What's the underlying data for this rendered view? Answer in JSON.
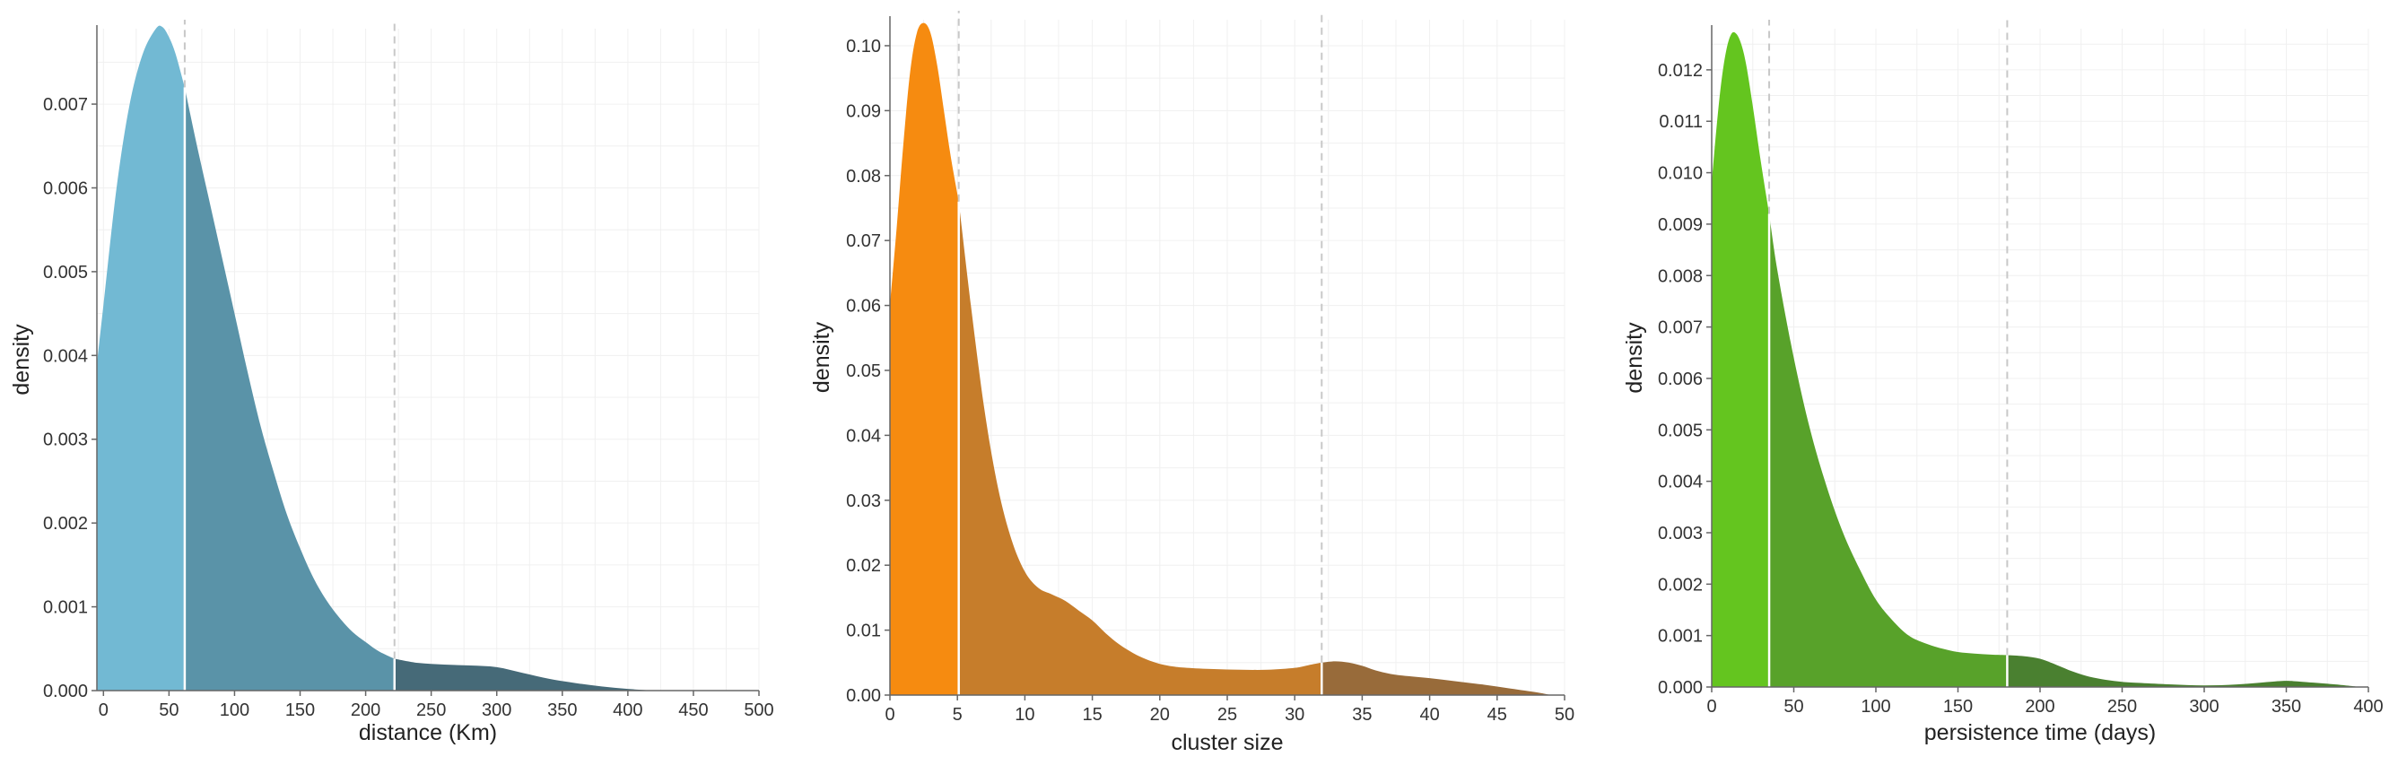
{
  "chart_data": [
    {
      "type": "area",
      "title": "",
      "xlabel": "distance (Km)",
      "ylabel": "density",
      "xlim": [
        -5,
        500
      ],
      "ylim": [
        0,
        0.0079
      ],
      "x_ticks": [
        0,
        50,
        100,
        150,
        200,
        250,
        300,
        350,
        400,
        450,
        500
      ],
      "y_ticks": [
        0.0,
        0.001,
        0.002,
        0.003,
        0.004,
        0.005,
        0.006,
        0.007
      ],
      "y_tick_decimals": 3,
      "grid": true,
      "colors": [
        "#72b9d3",
        "#5a93a8",
        "#466a78"
      ],
      "cutoffs": [
        62,
        222
      ],
      "x": [
        -5,
        0,
        10,
        20,
        30,
        40,
        45,
        50,
        55,
        62,
        70,
        80,
        90,
        100,
        110,
        120,
        130,
        140,
        150,
        160,
        170,
        180,
        190,
        200,
        210,
        222,
        240,
        260,
        280,
        300,
        320,
        340,
        360,
        380,
        400,
        420
      ],
      "y": [
        0.0039,
        0.0046,
        0.006,
        0.007,
        0.0076,
        0.0079,
        0.00792,
        0.0078,
        0.0076,
        0.0072,
        0.0066,
        0.0059,
        0.0052,
        0.0045,
        0.0038,
        0.00315,
        0.0026,
        0.0021,
        0.0017,
        0.00135,
        0.00108,
        0.00087,
        0.0007,
        0.00058,
        0.00047,
        0.00038,
        0.00033,
        0.00031,
        0.0003,
        0.00028,
        0.00021,
        0.00014,
        9e-05,
        5e-05,
        2e-05,
        0.0
      ]
    },
    {
      "type": "area",
      "title": "",
      "xlabel": "cluster size",
      "ylabel": "density",
      "xlim": [
        0,
        50
      ],
      "ylim": [
        0,
        0.104
      ],
      "x_ticks": [
        0,
        5,
        10,
        15,
        20,
        25,
        30,
        35,
        40,
        45,
        50
      ],
      "y_ticks": [
        0.0,
        0.01,
        0.02,
        0.03,
        0.04,
        0.05,
        0.06,
        0.07,
        0.08,
        0.09,
        0.1
      ],
      "y_tick_decimals": 2,
      "grid": true,
      "colors": [
        "#f68b10",
        "#c67d2b",
        "#986b3a"
      ],
      "cutoffs": [
        5.1,
        32
      ],
      "x": [
        0,
        0.5,
        1,
        1.5,
        2,
        2.5,
        3,
        3.5,
        4,
        4.5,
        5.1,
        6,
        7,
        8,
        9,
        10,
        11,
        12,
        13,
        14,
        15,
        16,
        17,
        18,
        19,
        20,
        21,
        22,
        24,
        26,
        28,
        30,
        31,
        32,
        33,
        34,
        35,
        36,
        37,
        38,
        40,
        42,
        44,
        46,
        48,
        49
      ],
      "y": [
        0.06,
        0.072,
        0.085,
        0.096,
        0.102,
        0.1035,
        0.102,
        0.097,
        0.09,
        0.083,
        0.076,
        0.06,
        0.044,
        0.032,
        0.024,
        0.019,
        0.0165,
        0.0155,
        0.0145,
        0.013,
        0.0115,
        0.0095,
        0.0078,
        0.0065,
        0.0055,
        0.0048,
        0.0044,
        0.0042,
        0.004,
        0.0039,
        0.0039,
        0.0042,
        0.0046,
        0.005,
        0.0052,
        0.005,
        0.0045,
        0.0038,
        0.0033,
        0.003,
        0.0026,
        0.0021,
        0.0016,
        0.001,
        0.0004,
        0.0
      ]
    },
    {
      "type": "area",
      "title": "",
      "xlabel": "persistence time (days)",
      "ylabel": "density",
      "xlim": [
        0,
        400
      ],
      "ylim": [
        0,
        0.0128
      ],
      "x_ticks": [
        0,
        50,
        100,
        150,
        200,
        250,
        300,
        350,
        400
      ],
      "y_ticks": [
        0.0,
        0.001,
        0.002,
        0.003,
        0.004,
        0.005,
        0.006,
        0.007,
        0.008,
        0.009,
        0.01,
        0.011,
        0.012
      ],
      "y_tick_decimals": 3,
      "grid": true,
      "colors": [
        "#64c51f",
        "#58a22a",
        "#4a8030"
      ],
      "cutoffs": [
        35,
        180
      ],
      "x": [
        0,
        3,
        6,
        9,
        12,
        15,
        18,
        21,
        25,
        30,
        35,
        40,
        50,
        60,
        70,
        80,
        90,
        100,
        110,
        120,
        130,
        140,
        150,
        160,
        170,
        180,
        190,
        200,
        210,
        220,
        230,
        240,
        250,
        260,
        280,
        300,
        320,
        340,
        350,
        360,
        380,
        395
      ],
      "y": [
        0.0098,
        0.0109,
        0.0118,
        0.0124,
        0.0127,
        0.0127,
        0.0125,
        0.0121,
        0.0113,
        0.0102,
        0.0092,
        0.0081,
        0.0064,
        0.005,
        0.0039,
        0.003,
        0.0023,
        0.0017,
        0.0013,
        0.001,
        0.00085,
        0.00075,
        0.00068,
        0.00065,
        0.00063,
        0.00062,
        0.0006,
        0.00055,
        0.00043,
        0.0003,
        0.0002,
        0.00014,
        0.0001,
        8e-05,
        5e-05,
        3e-05,
        5e-05,
        0.0001,
        0.00012,
        0.0001,
        5e-05,
        0.0
      ]
    }
  ]
}
